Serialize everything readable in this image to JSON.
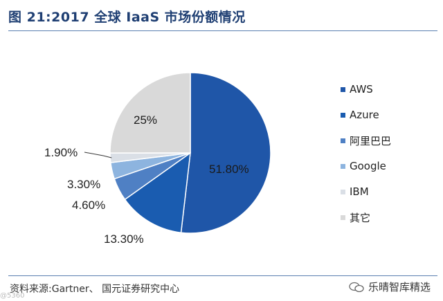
{
  "header": {
    "title": "图 21:2017 全球 IaaS 市场份额情况"
  },
  "chart_data": {
    "type": "pie",
    "title": "图 21:2017 全球 IaaS 市场份额情况",
    "categories": [
      "AWS",
      "Azure",
      "阿里巴巴",
      "Google",
      "IBM",
      "其它"
    ],
    "values": [
      51.8,
      13.3,
      4.6,
      3.3,
      1.9,
      25.0
    ],
    "value_labels": [
      "51.80%",
      "13.30%",
      "4.60%",
      "3.30%",
      "1.90%",
      "25%"
    ],
    "colors": [
      "#1f56a8",
      "#1a5cb0",
      "#4f80c4",
      "#8db4df",
      "#dadfe6",
      "#d9d9d9"
    ],
    "legend_position": "right"
  },
  "legend": [
    "AWS",
    "Azure",
    "阿里巴巴",
    "Google",
    "IBM",
    "其它"
  ],
  "footer": {
    "source": "资料来源:Gartner、 国元证券研究中心",
    "brand": "乐晴智库精选",
    "corner": "@5360"
  }
}
